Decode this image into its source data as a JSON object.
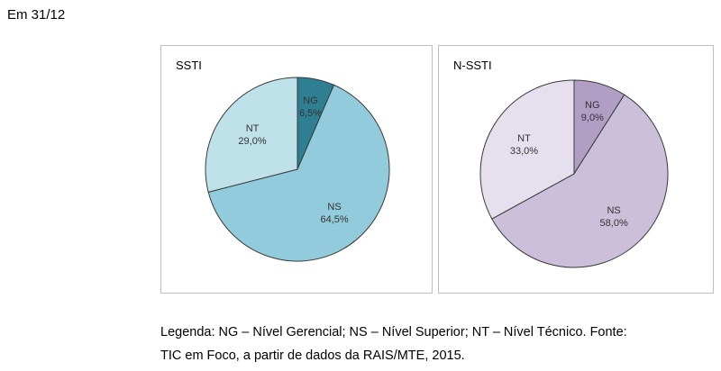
{
  "heading": "Em 31/12",
  "caption_lines": [
    "Legenda: NG – Nível Gerencial; NS – Nível Superior; NT – Nível Técnico. Fonte:",
    "TIC em Foco, a partir de dados da RAIS/MTE, 2015."
  ],
  "chart_data": [
    {
      "type": "pie",
      "title": "SSTI",
      "categories": [
        "NG",
        "NS",
        "NT"
      ],
      "values": [
        6.5,
        64.5,
        29.0
      ],
      "value_labels": [
        "6,5%",
        "64,5%",
        "29,0%"
      ],
      "colors": [
        "#2f7f92",
        "#92cbdb",
        "#bfe1ea"
      ],
      "legend": "none"
    },
    {
      "type": "pie",
      "title": "N-SSTI",
      "categories": [
        "NG",
        "NS",
        "NT"
      ],
      "values": [
        9.0,
        58.0,
        33.0
      ],
      "value_labels": [
        "9,0%",
        "58,0%",
        "33,0%"
      ],
      "colors": [
        "#b09ec4",
        "#cbbfd9",
        "#e6e0ee"
      ],
      "legend": "none"
    }
  ]
}
